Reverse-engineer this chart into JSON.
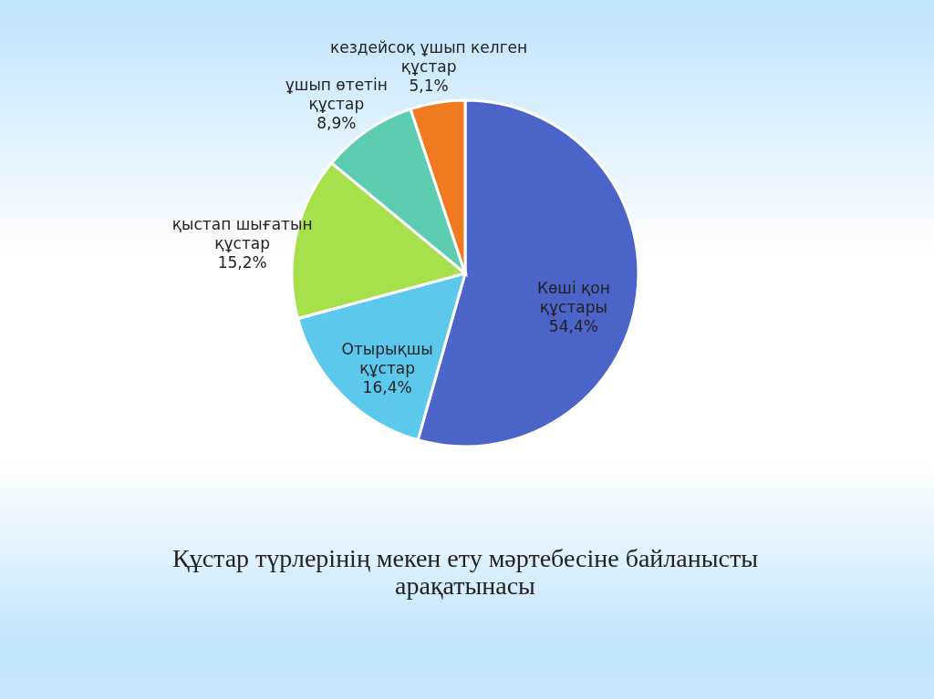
{
  "chart_data": {
    "type": "pie",
    "title": "Құстар түрлерінің мекен ету мәртебесіне байланысты арақатынасы",
    "categories": [
      "Көші қон құстары",
      "Отырықшы құстар",
      "қыстап шығатын құстар",
      "ұшып өтетін құстар",
      "кездейсоқ ұшып келген құстар"
    ],
    "values": [
      54.4,
      16.4,
      15.2,
      8.9,
      5.1
    ],
    "value_labels": [
      "54,4%",
      "16,4%",
      "15,2%",
      "8,9%",
      "5,1%"
    ],
    "colors": [
      "#4a64c8",
      "#5bc8ec",
      "#a6e04a",
      "#5ccdb0",
      "#f07a20"
    ],
    "legend": false
  }
}
